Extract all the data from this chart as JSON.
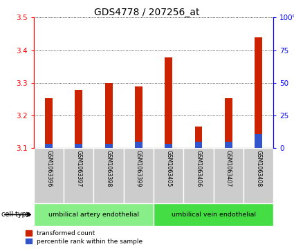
{
  "title": "GDS4778 / 207256_at",
  "samples": [
    "GSM1063396",
    "GSM1063397",
    "GSM1063398",
    "GSM1063399",
    "GSM1063405",
    "GSM1063406",
    "GSM1063407",
    "GSM1063408"
  ],
  "red_values": [
    3.252,
    3.278,
    3.3,
    3.288,
    3.378,
    3.165,
    3.252,
    3.44
  ],
  "blue_values": [
    3.113,
    3.113,
    3.113,
    3.12,
    3.113,
    3.12,
    3.12,
    3.143
  ],
  "baseline": 3.1,
  "ylim_left": [
    3.1,
    3.5
  ],
  "yticks_left": [
    3.1,
    3.2,
    3.3,
    3.4,
    3.5
  ],
  "yticks_right": [
    0,
    25,
    50,
    75,
    100
  ],
  "ylim_right": [
    0,
    100
  ],
  "bar_width": 0.25,
  "red_color": "#CC2200",
  "blue_color": "#3355CC",
  "cell_groups": [
    {
      "label": "umbilical artery endothelial",
      "start": 0,
      "end": 4,
      "color": "#88EE88"
    },
    {
      "label": "umbilical vein endothelial",
      "start": 4,
      "end": 8,
      "color": "#44DD44"
    }
  ],
  "legend_red": "transformed count",
  "legend_blue": "percentile rank within the sample",
  "cell_type_label": "cell type",
  "plot_bg": "#FFFFFF",
  "title_fontsize": 10,
  "tick_fontsize": 7.5,
  "label_fontsize": 7
}
